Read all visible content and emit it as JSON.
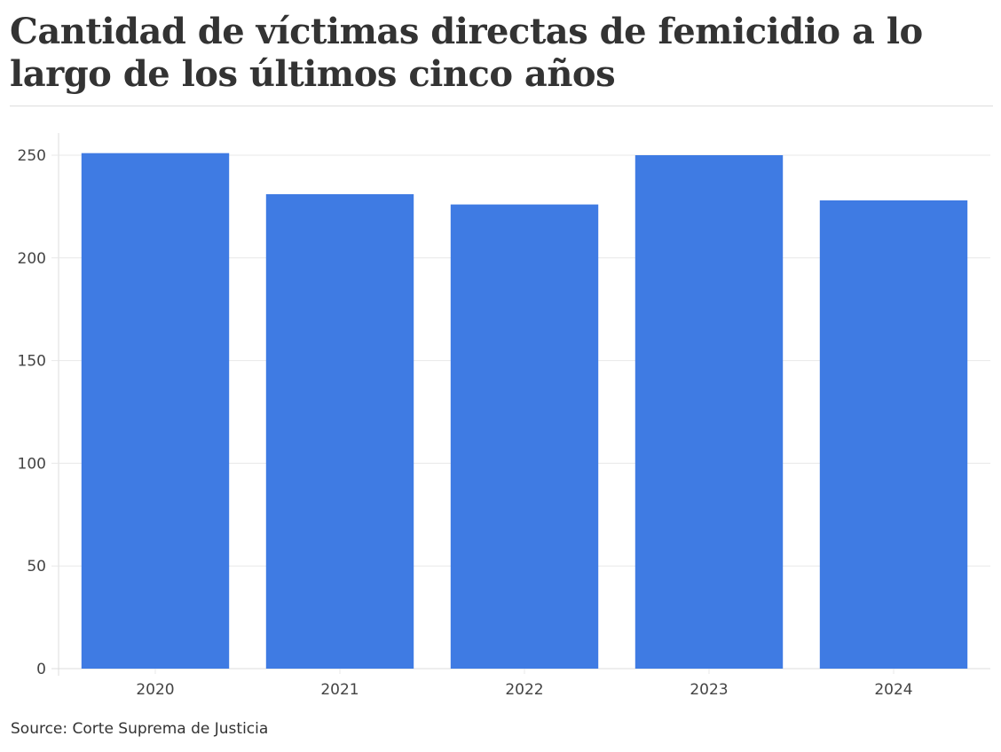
{
  "header": {
    "title": "Cantidad de víctimas directas de femicidio a lo largo de los últimos cinco años"
  },
  "footer": {
    "source": "Source: Corte Suprema de Justicia"
  },
  "colors": {
    "bar": "#3f7be3",
    "grid": "#e8e8e8",
    "axis": "#dddddd"
  },
  "chart_data": {
    "type": "bar",
    "title": "Cantidad de víctimas directas de femicidio a lo largo de los últimos cinco años",
    "xlabel": "",
    "ylabel": "",
    "categories": [
      "2020",
      "2021",
      "2022",
      "2023",
      "2024"
    ],
    "values": [
      251,
      231,
      226,
      250,
      228
    ],
    "ylim": [
      0,
      260
    ],
    "yticks": [
      0,
      50,
      100,
      150,
      200,
      250
    ],
    "grid": true,
    "legend": "none",
    "source": "Source: Corte Suprema de Justicia"
  }
}
